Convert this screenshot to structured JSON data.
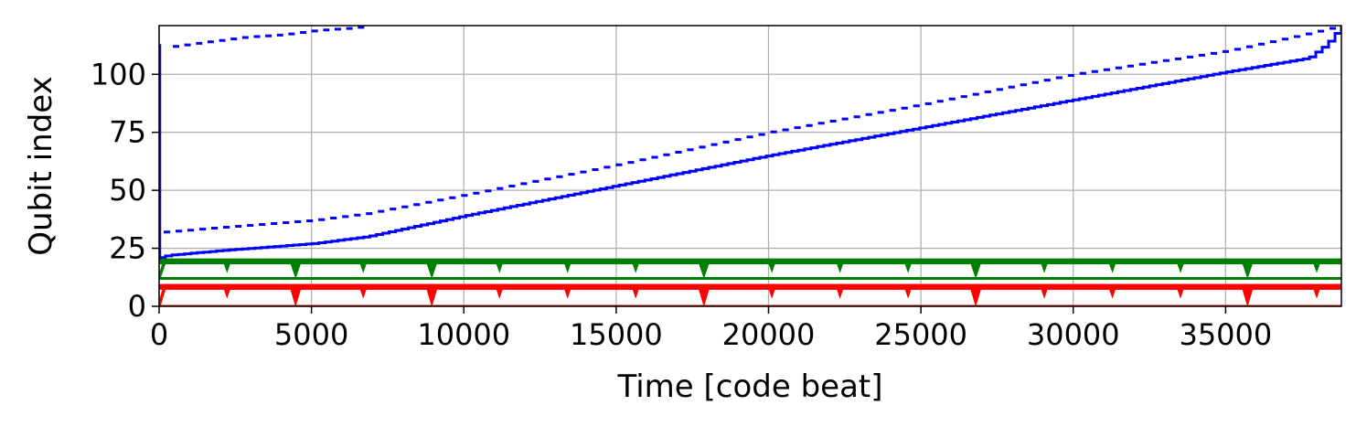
{
  "chart_data": {
    "type": "scatter",
    "title": "",
    "xlabel": "Time [code beat]",
    "ylabel": "Qubit index",
    "xlim": [
      0,
      38800
    ],
    "ylim": [
      0,
      121
    ],
    "x_ticks": [
      0,
      5000,
      10000,
      15000,
      20000,
      25000,
      30000,
      35000
    ],
    "x_tick_labels": [
      "0",
      "5000",
      "10000",
      "15000",
      "20000",
      "25000",
      "30000",
      "35000"
    ],
    "y_ticks": [
      0,
      25,
      50,
      75,
      100
    ],
    "y_tick_labels": [
      "0",
      "25",
      "50",
      "75",
      "100"
    ],
    "grid": true,
    "legend": "none",
    "colors": {
      "blue": "#0000ff",
      "green": "#008000",
      "red": "#ff0000",
      "grid": "#b0b0b0"
    },
    "series": [
      {
        "color": "#0000ff",
        "kind": "dashed-step",
        "x": [
          450,
          1000,
          1600,
          2200,
          2800,
          3400,
          4000,
          4600,
          5200,
          5800,
          6400,
          6900
        ],
        "y": [
          112,
          113,
          114,
          115,
          116,
          116.5,
          117,
          118,
          119,
          119.5,
          120,
          121
        ]
      },
      {
        "color": "#0000ff",
        "kind": "dashed-step",
        "x": [
          150,
          2000,
          5000,
          6800,
          10000,
          15000,
          20000,
          25000,
          30000,
          35000,
          37500,
          38800
        ],
        "y": [
          32,
          34,
          37,
          40,
          48,
          61,
          75,
          87,
          100,
          110,
          117,
          121
        ]
      },
      {
        "color": "#0000ff",
        "kind": "step",
        "x": [
          0,
          300,
          2000,
          5000,
          6800,
          10000,
          15000,
          20000,
          25000,
          30000,
          35000,
          37700,
          38300,
          38800
        ],
        "y": [
          21,
          22,
          24,
          27,
          30,
          39,
          52,
          65,
          77,
          89,
          101,
          107,
          113,
          121
        ]
      },
      {
        "color": "#008000",
        "kind": "sawtooth-band",
        "base": 12,
        "top": 20,
        "major_dip_x": [
          4480,
          8950,
          17880,
          26800,
          35720
        ],
        "major_dip_y": 13
      },
      {
        "color": "#ff0000",
        "kind": "sawtooth-band",
        "base": 0,
        "top": 9,
        "major_dip_x": [
          4480,
          8950,
          17880,
          26800,
          35720
        ],
        "major_dip_y": 1
      }
    ]
  }
}
